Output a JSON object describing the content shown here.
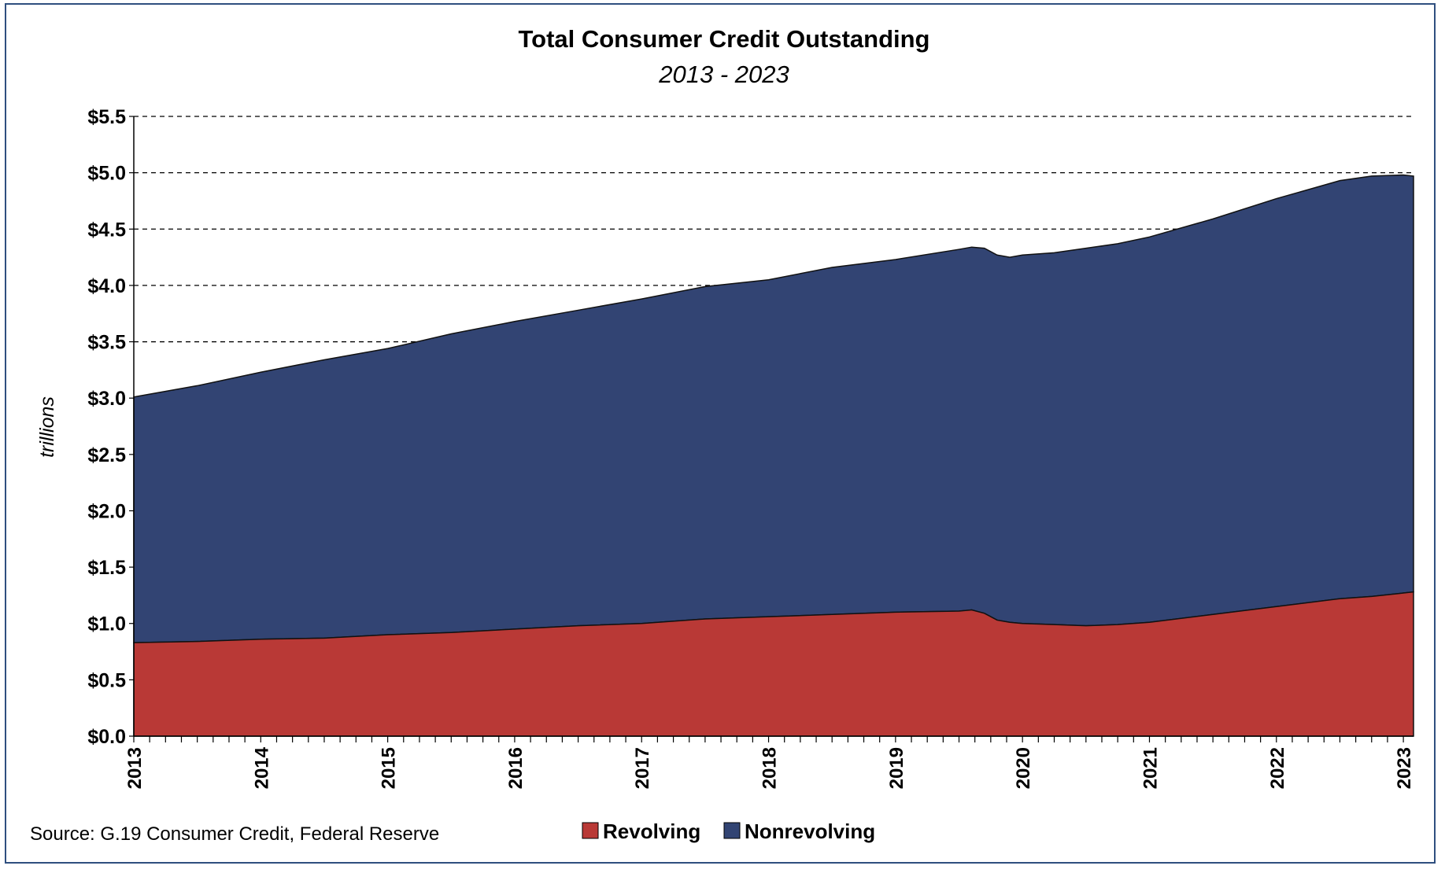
{
  "chart_data": {
    "type": "area",
    "stacked": true,
    "title": "Total Consumer Credit Outstanding",
    "subtitle": "2013 - 2023",
    "ylabel": "trillions",
    "xlabel": "",
    "ylim": [
      0,
      5.5
    ],
    "y_ticks": [
      "$0.0",
      "$0.5",
      "$1.0",
      "$1.5",
      "$2.0",
      "$2.5",
      "$3.0",
      "$3.5",
      "$4.0",
      "$4.5",
      "$5.0",
      "$5.5"
    ],
    "x_ticks": [
      "2013",
      "2014",
      "2015",
      "2016",
      "2017",
      "2018",
      "2019",
      "2020",
      "2021",
      "2022",
      "2023"
    ],
    "grid": "horizontal dashed",
    "legend_position": "bottom",
    "source": "Source: G.19 Consumer Credit, Federal Reserve",
    "x": [
      2013.0,
      2013.5,
      2014.0,
      2014.5,
      2015.0,
      2015.5,
      2016.0,
      2016.5,
      2017.0,
      2017.5,
      2018.0,
      2018.5,
      2019.0,
      2019.5,
      2019.6,
      2019.7,
      2019.8,
      2019.9,
      2020.0,
      2020.25,
      2020.5,
      2020.75,
      2021.0,
      2021.5,
      2022.0,
      2022.5,
      2022.75,
      2023.0,
      2023.08
    ],
    "series": [
      {
        "name": "Revolving",
        "color": "#b93936",
        "values": [
          0.83,
          0.84,
          0.86,
          0.87,
          0.9,
          0.92,
          0.95,
          0.98,
          1.0,
          1.04,
          1.06,
          1.08,
          1.1,
          1.11,
          1.12,
          1.09,
          1.03,
          1.01,
          1.0,
          0.99,
          0.98,
          0.99,
          1.01,
          1.08,
          1.15,
          1.22,
          1.24,
          1.27,
          1.28
        ]
      },
      {
        "name": "Nonrevolving",
        "color": "#324473",
        "values": [
          2.18,
          2.27,
          2.37,
          2.47,
          2.54,
          2.65,
          2.73,
          2.8,
          2.88,
          2.95,
          2.99,
          3.08,
          3.13,
          3.21,
          3.22,
          3.24,
          3.24,
          3.24,
          3.27,
          3.3,
          3.35,
          3.38,
          3.42,
          3.51,
          3.62,
          3.71,
          3.73,
          3.71,
          3.69
        ]
      }
    ]
  }
}
